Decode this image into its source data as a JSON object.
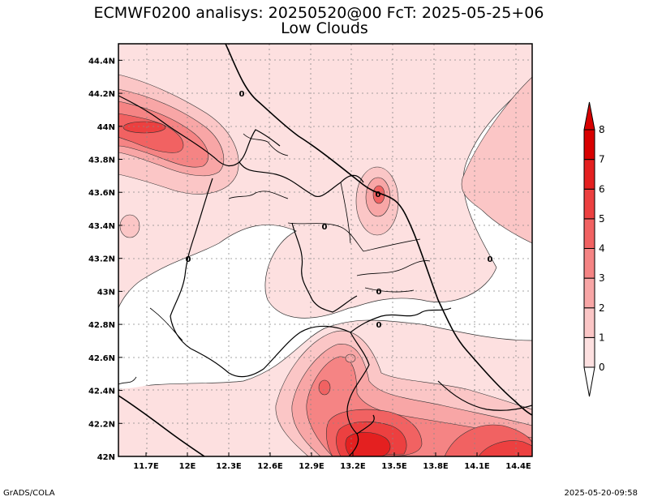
{
  "title_line1": "ECMWF0200 analisys: 20250520@00 FcT: 2025-05-25+06",
  "title_line2": "Low Clouds",
  "footer_left": "GrADS/COLA",
  "footer_right": "2025-05-20-09:58",
  "chart_data": {
    "type": "heatmap",
    "lon_ticks": [
      "11.7E",
      "12E",
      "12.3E",
      "12.6E",
      "12.9E",
      "13.2E",
      "13.5E",
      "13.8E",
      "14.1E",
      "14.4E"
    ],
    "lat_ticks": [
      "44.4N",
      "44.2N",
      "44N",
      "43.8N",
      "43.6N",
      "43.4N",
      "43.2N",
      "43N",
      "42.8N",
      "42.6N",
      "42.4N",
      "42.2N",
      "42N"
    ],
    "lon_range": [
      11.5,
      14.5
    ],
    "lat_range": [
      42.0,
      44.5
    ],
    "grid": true,
    "colorbar": {
      "labels": [
        "0",
        "1",
        "2",
        "3",
        "4",
        "5",
        "6",
        "7",
        "8"
      ],
      "colors": [
        "#ffffff",
        "#fde0e0",
        "#fbc6c6",
        "#f8a6a6",
        "#f58484",
        "#f16262",
        "#ec4040",
        "#e42020",
        "#d80000"
      ]
    },
    "contour_labels": [
      "0",
      "0",
      "0",
      "0",
      "0",
      "0",
      "0"
    ]
  }
}
